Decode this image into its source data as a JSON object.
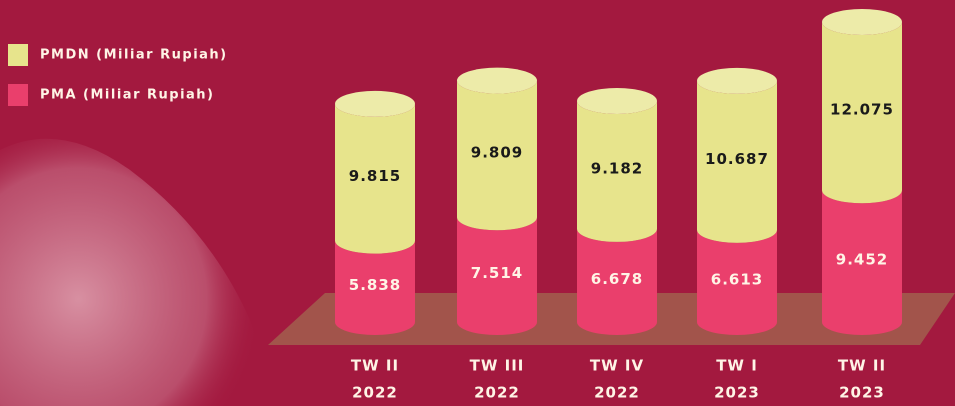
{
  "chart_data": {
    "type": "stacked-cylinder",
    "categories": [
      [
        "TW II",
        "2022"
      ],
      [
        "TW III",
        "2022"
      ],
      [
        "TW IV",
        "2022"
      ],
      [
        "TW I",
        "2023"
      ],
      [
        "TW II",
        "2023"
      ]
    ],
    "series": [
      {
        "name": "PMA (Miliar Rupiah)",
        "color": "#ea3f6c",
        "values": [
          5838,
          7514,
          6678,
          6613,
          9452
        ],
        "value_labels": [
          "5.838",
          "7.514",
          "6.678",
          "6.613",
          "9.452"
        ]
      },
      {
        "name": "PMDN (Miliar Rupiah)",
        "color": "#e7e48c",
        "values": [
          9815,
          9809,
          9182,
          10687,
          12075
        ],
        "value_labels": [
          "9.815",
          "9.809",
          "9.182",
          "10.687",
          "12.075"
        ]
      }
    ],
    "legend": "top-left"
  }
}
